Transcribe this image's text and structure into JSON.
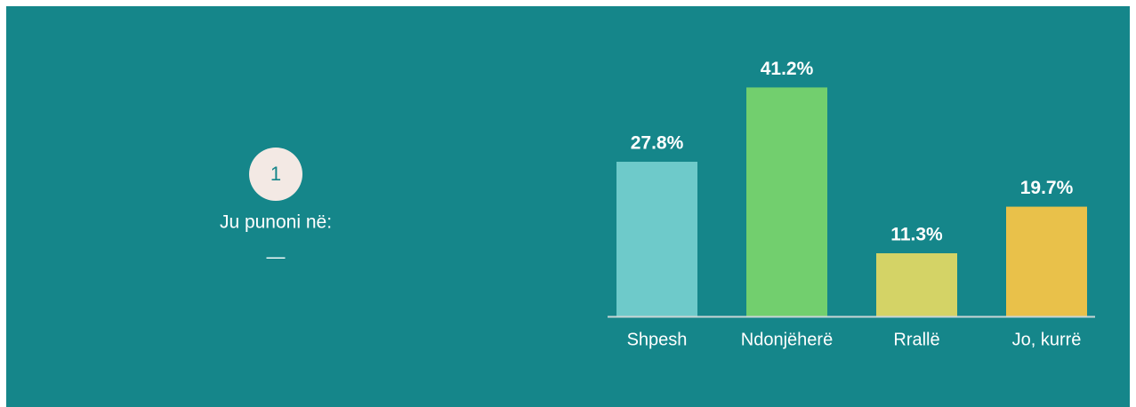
{
  "badge": "1",
  "separator": "—",
  "chart_data": {
    "type": "bar",
    "title": "Ju punoni në:",
    "categories": [
      "Shpesh",
      "Ndonjëherë",
      "Rrallë",
      "Jo, kurrë"
    ],
    "values": [
      27.8,
      41.2,
      11.3,
      19.7
    ],
    "value_labels": [
      "27.8%",
      "41.2%",
      "11.3%",
      "19.7%"
    ],
    "colors": [
      "#6ecaca",
      "#72cf6e",
      "#d4d366",
      "#e9c14a"
    ]
  }
}
